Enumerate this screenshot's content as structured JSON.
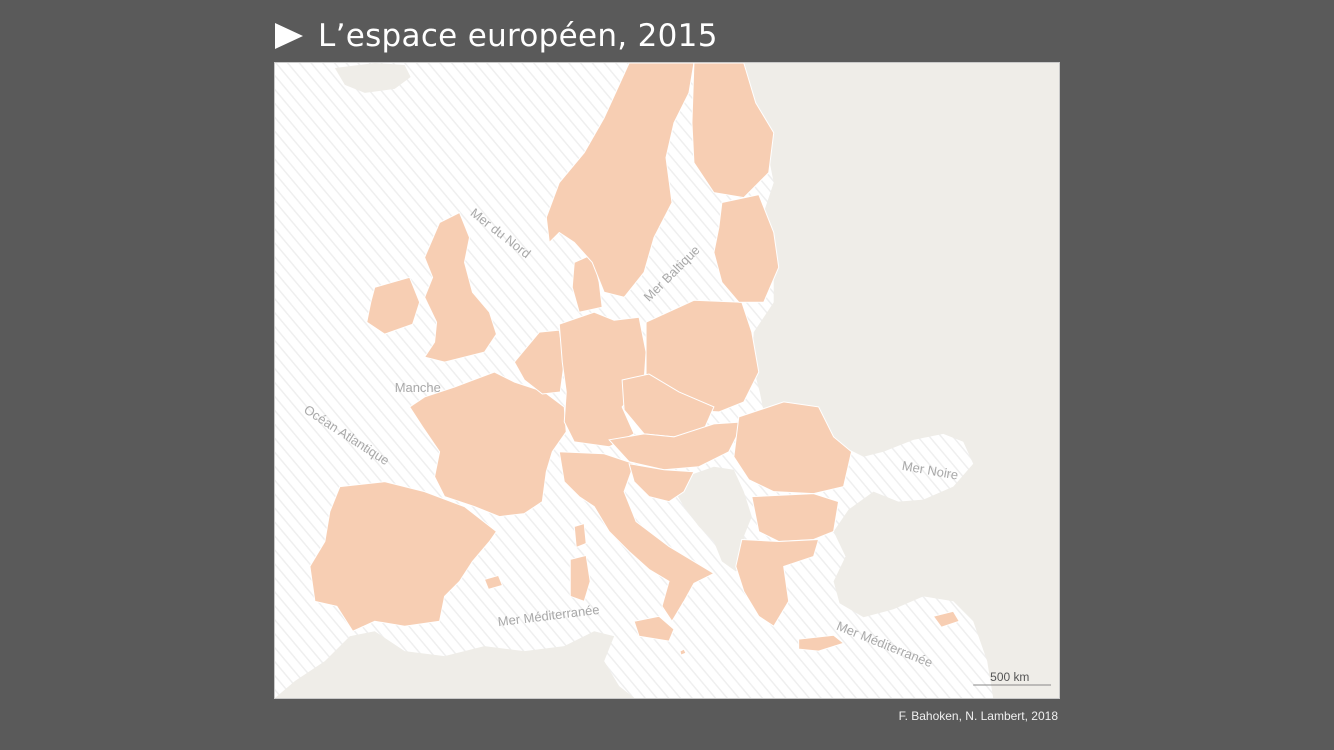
{
  "header": {
    "title": "L’espace européen, 2015"
  },
  "map": {
    "colors": {
      "sea": "#ffffff",
      "sea_hatch": "#efefef",
      "eu_country": "#f7ceb3",
      "non_eu_land": "#efede8",
      "border": "#ffffff"
    },
    "labels": {
      "north_sea": "Mer du Nord",
      "baltic_sea": "Mer Baltique",
      "channel": "Manche",
      "atlantic": "Océan Atlantique",
      "black_sea": "Mer Noire",
      "mediterranean_west": "Mer Méditerranée",
      "mediterranean_east": "Mer Méditerranée"
    },
    "scale_bar": {
      "label": "500 km"
    }
  },
  "footer": {
    "credit": "F. Bahoken, N. Lambert, 2018"
  }
}
